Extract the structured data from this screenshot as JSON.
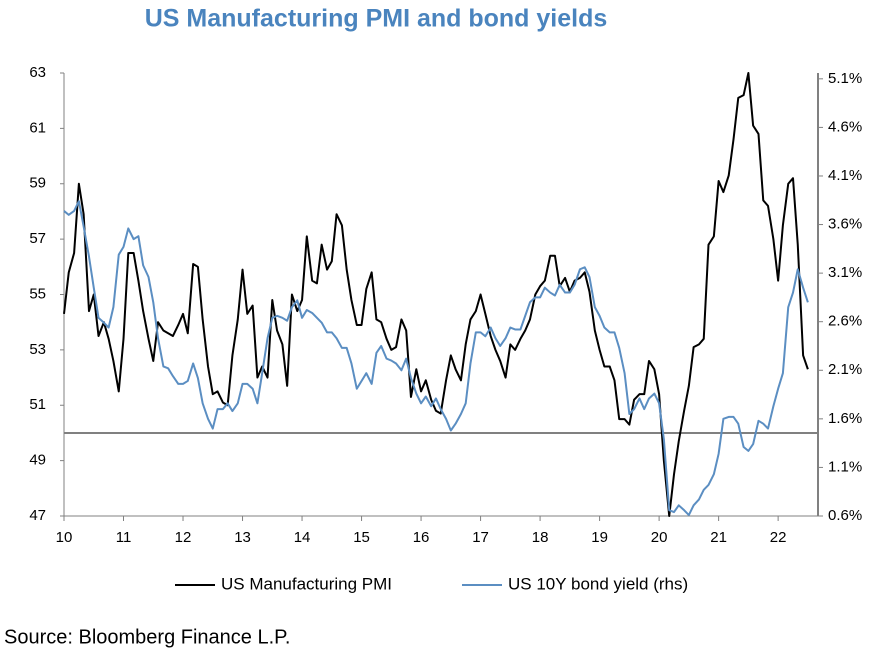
{
  "chart_data": {
    "type": "line",
    "title": "US Manufacturing PMI and bond yields",
    "source": "Source: Bloomberg Finance L.P.",
    "x": [
      2010,
      2010.08,
      2010.17,
      2010.25,
      2010.33,
      2010.42,
      2010.5,
      2010.58,
      2010.67,
      2010.75,
      2010.83,
      2010.92,
      2011,
      2011.08,
      2011.17,
      2011.25,
      2011.33,
      2011.42,
      2011.5,
      2011.58,
      2011.67,
      2011.75,
      2011.83,
      2011.92,
      2012,
      2012.08,
      2012.17,
      2012.25,
      2012.33,
      2012.42,
      2012.5,
      2012.58,
      2012.67,
      2012.75,
      2012.83,
      2012.92,
      2013,
      2013.08,
      2013.17,
      2013.25,
      2013.33,
      2013.42,
      2013.5,
      2013.58,
      2013.67,
      2013.75,
      2013.83,
      2013.92,
      2014,
      2014.08,
      2014.17,
      2014.25,
      2014.33,
      2014.42,
      2014.5,
      2014.58,
      2014.67,
      2014.75,
      2014.83,
      2014.92,
      2015,
      2015.08,
      2015.17,
      2015.25,
      2015.33,
      2015.42,
      2015.5,
      2015.58,
      2015.67,
      2015.75,
      2015.83,
      2015.92,
      2016,
      2016.08,
      2016.17,
      2016.25,
      2016.33,
      2016.42,
      2016.5,
      2016.58,
      2016.67,
      2016.75,
      2016.83,
      2016.92,
      2017,
      2017.08,
      2017.17,
      2017.25,
      2017.33,
      2017.42,
      2017.5,
      2017.58,
      2017.67,
      2017.75,
      2017.83,
      2017.92,
      2018,
      2018.08,
      2018.17,
      2018.25,
      2018.33,
      2018.42,
      2018.5,
      2018.58,
      2018.67,
      2018.75,
      2018.83,
      2018.92,
      2019,
      2019.08,
      2019.17,
      2019.25,
      2019.33,
      2019.42,
      2019.5,
      2019.58,
      2019.67,
      2019.75,
      2019.83,
      2019.92,
      2020,
      2020.08,
      2020.17,
      2020.25,
      2020.33,
      2020.42,
      2020.5,
      2020.58,
      2020.67,
      2020.75,
      2020.83,
      2020.92,
      2021,
      2021.08,
      2021.17,
      2021.25,
      2021.33,
      2021.42,
      2021.5,
      2021.58,
      2021.67,
      2021.75,
      2021.83,
      2021.92,
      2022,
      2022.08,
      2022.17,
      2022.25,
      2022.33,
      2022.42,
      2022.5
    ],
    "series": [
      {
        "name": "US Manufacturing PMI",
        "color": "#000000",
        "values": [
          54.3,
          55.8,
          56.5,
          59.0,
          57.9,
          54.4,
          55.0,
          53.5,
          54.0,
          53.4,
          52.6,
          51.5,
          53.4,
          56.5,
          56.5,
          55.5,
          54.4,
          53.4,
          52.6,
          54.0,
          53.7,
          53.6,
          53.5,
          53.9,
          54.3,
          53.6,
          56.1,
          56.0,
          54.1,
          52.4,
          51.4,
          51.5,
          51.1,
          51.0,
          52.8,
          54.1,
          55.9,
          54.3,
          54.6,
          52.0,
          52.4,
          52.0,
          54.8,
          53.7,
          53.2,
          51.7,
          55.0,
          54.4,
          54.8,
          57.1,
          55.5,
          55.4,
          56.8,
          55.9,
          56.2,
          57.9,
          57.5,
          55.9,
          54.8,
          53.9,
          53.9,
          55.2,
          55.8,
          54.1,
          54.0,
          53.4,
          53.0,
          53.1,
          54.1,
          53.7,
          51.3,
          52.3,
          51.5,
          51.9,
          51.2,
          50.8,
          50.7,
          51.9,
          52.8,
          52.3,
          51.9,
          53.2,
          54.1,
          54.4,
          55.0,
          54.3,
          53.5,
          53.0,
          52.6,
          52.0,
          53.2,
          53.0,
          53.4,
          53.7,
          54.1,
          55.0,
          55.3,
          55.5,
          56.4,
          56.4,
          55.3,
          55.6,
          55.1,
          55.5,
          55.6,
          55.8,
          55.1,
          53.7,
          53.0,
          52.4,
          52.4,
          51.9,
          50.5,
          50.5,
          50.3,
          51.2,
          51.4,
          51.4,
          52.6,
          52.3,
          51.4,
          49.0,
          47.0,
          48.5,
          49.7,
          50.8,
          51.7,
          53.1,
          53.2,
          53.4,
          56.8,
          57.1,
          59.1,
          58.7,
          59.3,
          60.6,
          62.1,
          62.2,
          63.0,
          61.1,
          60.8,
          58.4,
          58.2,
          57.0,
          55.5,
          57.5,
          59.0,
          59.2,
          56.8,
          52.8,
          52.3
        ]
      },
      {
        "name": "US 10Y bond yield (rhs)",
        "color": "#5b8ec2",
        "axis": "y2",
        "values": [
          3.74,
          3.7,
          3.74,
          3.84,
          3.58,
          3.27,
          2.95,
          2.64,
          2.59,
          2.54,
          2.75,
          3.29,
          3.37,
          3.56,
          3.45,
          3.48,
          3.18,
          3.06,
          2.8,
          2.43,
          2.14,
          2.12,
          2.04,
          1.96,
          1.96,
          1.99,
          2.17,
          2.02,
          1.76,
          1.6,
          1.5,
          1.7,
          1.7,
          1.76,
          1.68,
          1.76,
          1.96,
          1.96,
          1.91,
          1.76,
          2.07,
          2.43,
          2.64,
          2.66,
          2.64,
          2.61,
          2.75,
          2.82,
          2.64,
          2.72,
          2.69,
          2.64,
          2.59,
          2.49,
          2.49,
          2.43,
          2.33,
          2.33,
          2.17,
          1.91,
          1.99,
          2.07,
          1.96,
          2.28,
          2.35,
          2.22,
          2.2,
          2.17,
          2.1,
          2.22,
          2.02,
          1.86,
          1.76,
          1.83,
          1.73,
          1.81,
          1.7,
          1.6,
          1.48,
          1.55,
          1.65,
          1.76,
          2.17,
          2.49,
          2.49,
          2.45,
          2.54,
          2.43,
          2.35,
          2.43,
          2.54,
          2.52,
          2.52,
          2.66,
          2.8,
          2.85,
          2.85,
          2.95,
          2.9,
          2.87,
          2.98,
          2.9,
          2.9,
          2.98,
          3.14,
          3.16,
          3.06,
          2.75,
          2.66,
          2.54,
          2.49,
          2.49,
          2.33,
          2.07,
          1.65,
          1.7,
          1.81,
          1.7,
          1.81,
          1.86,
          1.76,
          1.39,
          0.66,
          0.64,
          0.71,
          0.66,
          0.61,
          0.71,
          0.77,
          0.87,
          0.92,
          1.03,
          1.24,
          1.6,
          1.62,
          1.62,
          1.55,
          1.31,
          1.27,
          1.34,
          1.58,
          1.55,
          1.5,
          1.73,
          1.91,
          2.07,
          2.75,
          2.9,
          3.14,
          2.95,
          2.8
        ]
      }
    ],
    "xlim": [
      2010,
      2022.67
    ],
    "xticks": [
      {
        "value": 2010,
        "label": "10"
      },
      {
        "value": 2011,
        "label": "11"
      },
      {
        "value": 2012,
        "label": "12"
      },
      {
        "value": 2013,
        "label": "13"
      },
      {
        "value": 2014,
        "label": "14"
      },
      {
        "value": 2015,
        "label": "15"
      },
      {
        "value": 2016,
        "label": "16"
      },
      {
        "value": 2017,
        "label": "17"
      },
      {
        "value": 2018,
        "label": "18"
      },
      {
        "value": 2019,
        "label": "19"
      },
      {
        "value": 2020,
        "label": "20"
      },
      {
        "value": 2021,
        "label": "21"
      },
      {
        "value": 2022,
        "label": "22"
      }
    ],
    "ylim": [
      47,
      63
    ],
    "yticks": [
      47,
      49,
      51,
      53,
      55,
      57,
      59,
      61,
      63
    ],
    "y2lim": [
      0.6,
      5.16
    ],
    "y2ticks": [
      {
        "value": 0.6,
        "label": "0.6%"
      },
      {
        "value": 1.1,
        "label": "1.1%"
      },
      {
        "value": 1.6,
        "label": "1.6%"
      },
      {
        "value": 2.1,
        "label": "2.1%"
      },
      {
        "value": 2.6,
        "label": "2.6%"
      },
      {
        "value": 3.1,
        "label": "3.1%"
      },
      {
        "value": 3.6,
        "label": "3.6%"
      },
      {
        "value": 4.1,
        "label": "4.1%"
      },
      {
        "value": 4.6,
        "label": "4.6%"
      },
      {
        "value": 5.1,
        "label": "5.1%"
      }
    ],
    "hline": 50,
    "grid": false,
    "legend": "bottom"
  }
}
